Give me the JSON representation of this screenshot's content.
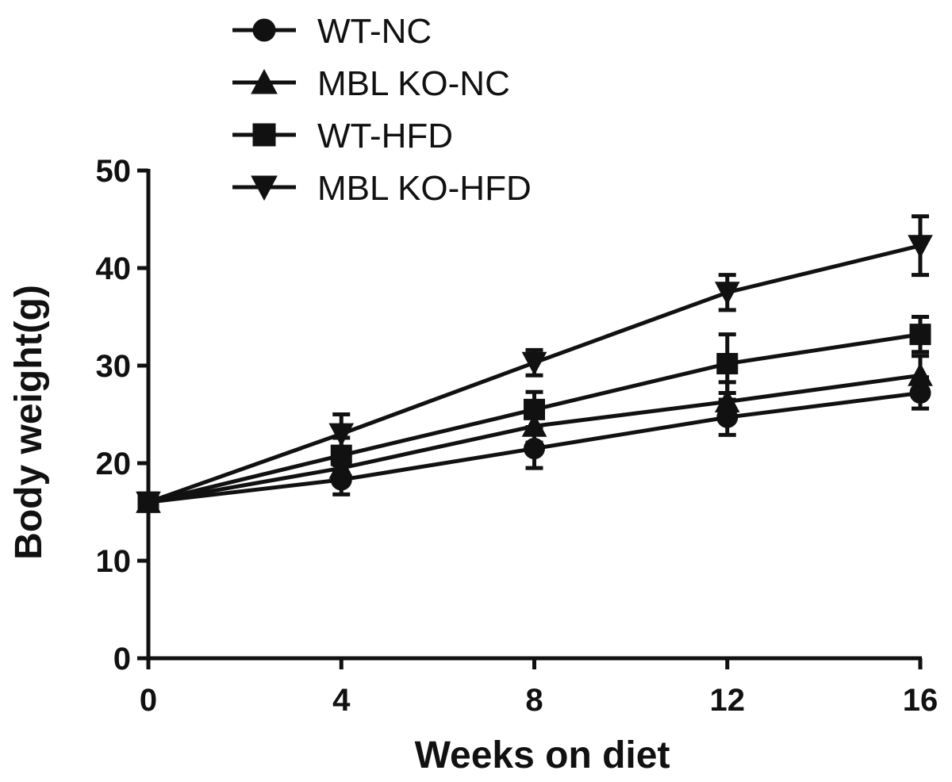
{
  "chart_data": {
    "type": "line",
    "title": "",
    "xlabel": "Weeks on diet",
    "ylabel": "Body weight(g)",
    "xlim": [
      0,
      16
    ],
    "ylim": [
      0,
      50
    ],
    "xticks": [
      0,
      4,
      8,
      12,
      16
    ],
    "yticks": [
      0,
      10,
      20,
      30,
      40,
      50
    ],
    "grid": false,
    "legend_position": "top-left",
    "series": [
      {
        "name": "WT-NC",
        "marker": "circle",
        "x": [
          0,
          4,
          8,
          12,
          16
        ],
        "y": [
          16,
          18.3,
          21.5,
          24.7,
          27.2
        ],
        "error": [
          0.5,
          1.5,
          2.0,
          1.8,
          1.6
        ]
      },
      {
        "name": "MBL KO-NC",
        "marker": "triangle-up",
        "x": [
          0,
          4,
          8,
          12,
          16
        ],
        "y": [
          16,
          19.5,
          23.8,
          26.3,
          29.0
        ],
        "error": [
          0.5,
          1.5,
          1.7,
          2.0,
          2.0
        ]
      },
      {
        "name": "WT-HFD",
        "marker": "square",
        "x": [
          0,
          4,
          8,
          12,
          16
        ],
        "y": [
          16,
          20.8,
          25.5,
          30.2,
          33.2
        ],
        "error": [
          0.5,
          1.8,
          1.8,
          3.0,
          1.8
        ]
      },
      {
        "name": "MBL KO-HFD",
        "marker": "triangle-down",
        "x": [
          0,
          4,
          8,
          12,
          16
        ],
        "y": [
          16,
          23.0,
          30.3,
          37.5,
          42.3
        ],
        "error": [
          0.5,
          2.0,
          1.3,
          1.8,
          3.0
        ]
      }
    ]
  }
}
